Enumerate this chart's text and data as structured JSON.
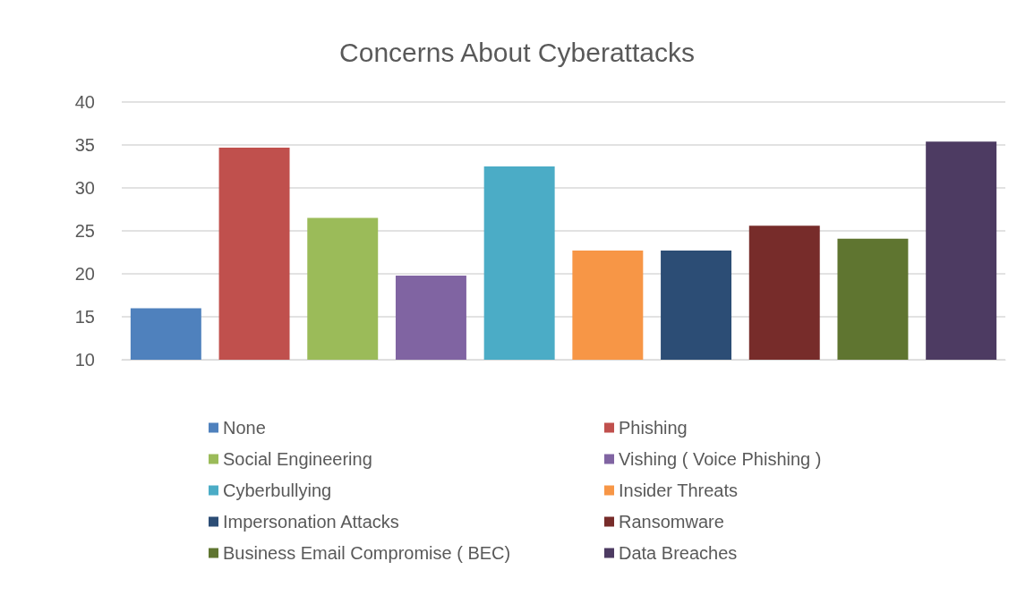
{
  "chart_data": {
    "type": "bar",
    "title": "Concerns About Cyberattacks",
    "categories": [
      null,
      null,
      null,
      null,
      null,
      null,
      null,
      null,
      null,
      null
    ],
    "stacked": true,
    "ylim": [
      10,
      40
    ],
    "yticks": [
      10,
      15,
      20,
      25,
      30,
      35,
      40
    ],
    "grid": "y",
    "legend": "bottom",
    "series": [
      {
        "name": "None",
        "color": "#4f81bd",
        "values": [
          16,
          null,
          null,
          null,
          null,
          null,
          null,
          null,
          null,
          null
        ]
      },
      {
        "name": "Phishing",
        "color": "#c0504d",
        "values": [
          null,
          34.7,
          null,
          null,
          null,
          null,
          null,
          null,
          null,
          null
        ]
      },
      {
        "name": "Social Engineering",
        "color": "#9bbb59",
        "values": [
          null,
          null,
          26.5,
          null,
          null,
          null,
          null,
          null,
          null,
          null
        ]
      },
      {
        "name": "Vishing ( Voice Phishing )",
        "color": "#8064a2",
        "values": [
          null,
          null,
          null,
          19.8,
          null,
          null,
          null,
          null,
          null,
          null
        ]
      },
      {
        "name": "Cyberbullying",
        "color": "#4bacc6",
        "values": [
          null,
          null,
          null,
          null,
          32.5,
          null,
          null,
          null,
          null,
          null
        ]
      },
      {
        "name": "Insider Threats",
        "color": "#f79646",
        "values": [
          null,
          null,
          null,
          null,
          null,
          22.7,
          null,
          null,
          null,
          null
        ]
      },
      {
        "name": "Impersonation Attacks",
        "color": "#2c4d75",
        "values": [
          null,
          null,
          null,
          null,
          null,
          null,
          22.7,
          null,
          null,
          null
        ]
      },
      {
        "name": "Ransomware",
        "color": "#772c2a",
        "values": [
          null,
          null,
          null,
          null,
          null,
          null,
          null,
          25.6,
          null,
          null
        ]
      },
      {
        "name": "Business Email Compromise ( BEC)",
        "color": "#5f7530",
        "values": [
          null,
          null,
          null,
          null,
          null,
          null,
          null,
          null,
          24.1,
          null
        ]
      },
      {
        "name": "Data Breaches",
        "color": "#4d3b62",
        "values": [
          null,
          null,
          null,
          null,
          null,
          null,
          null,
          null,
          null,
          35.4
        ]
      }
    ]
  }
}
